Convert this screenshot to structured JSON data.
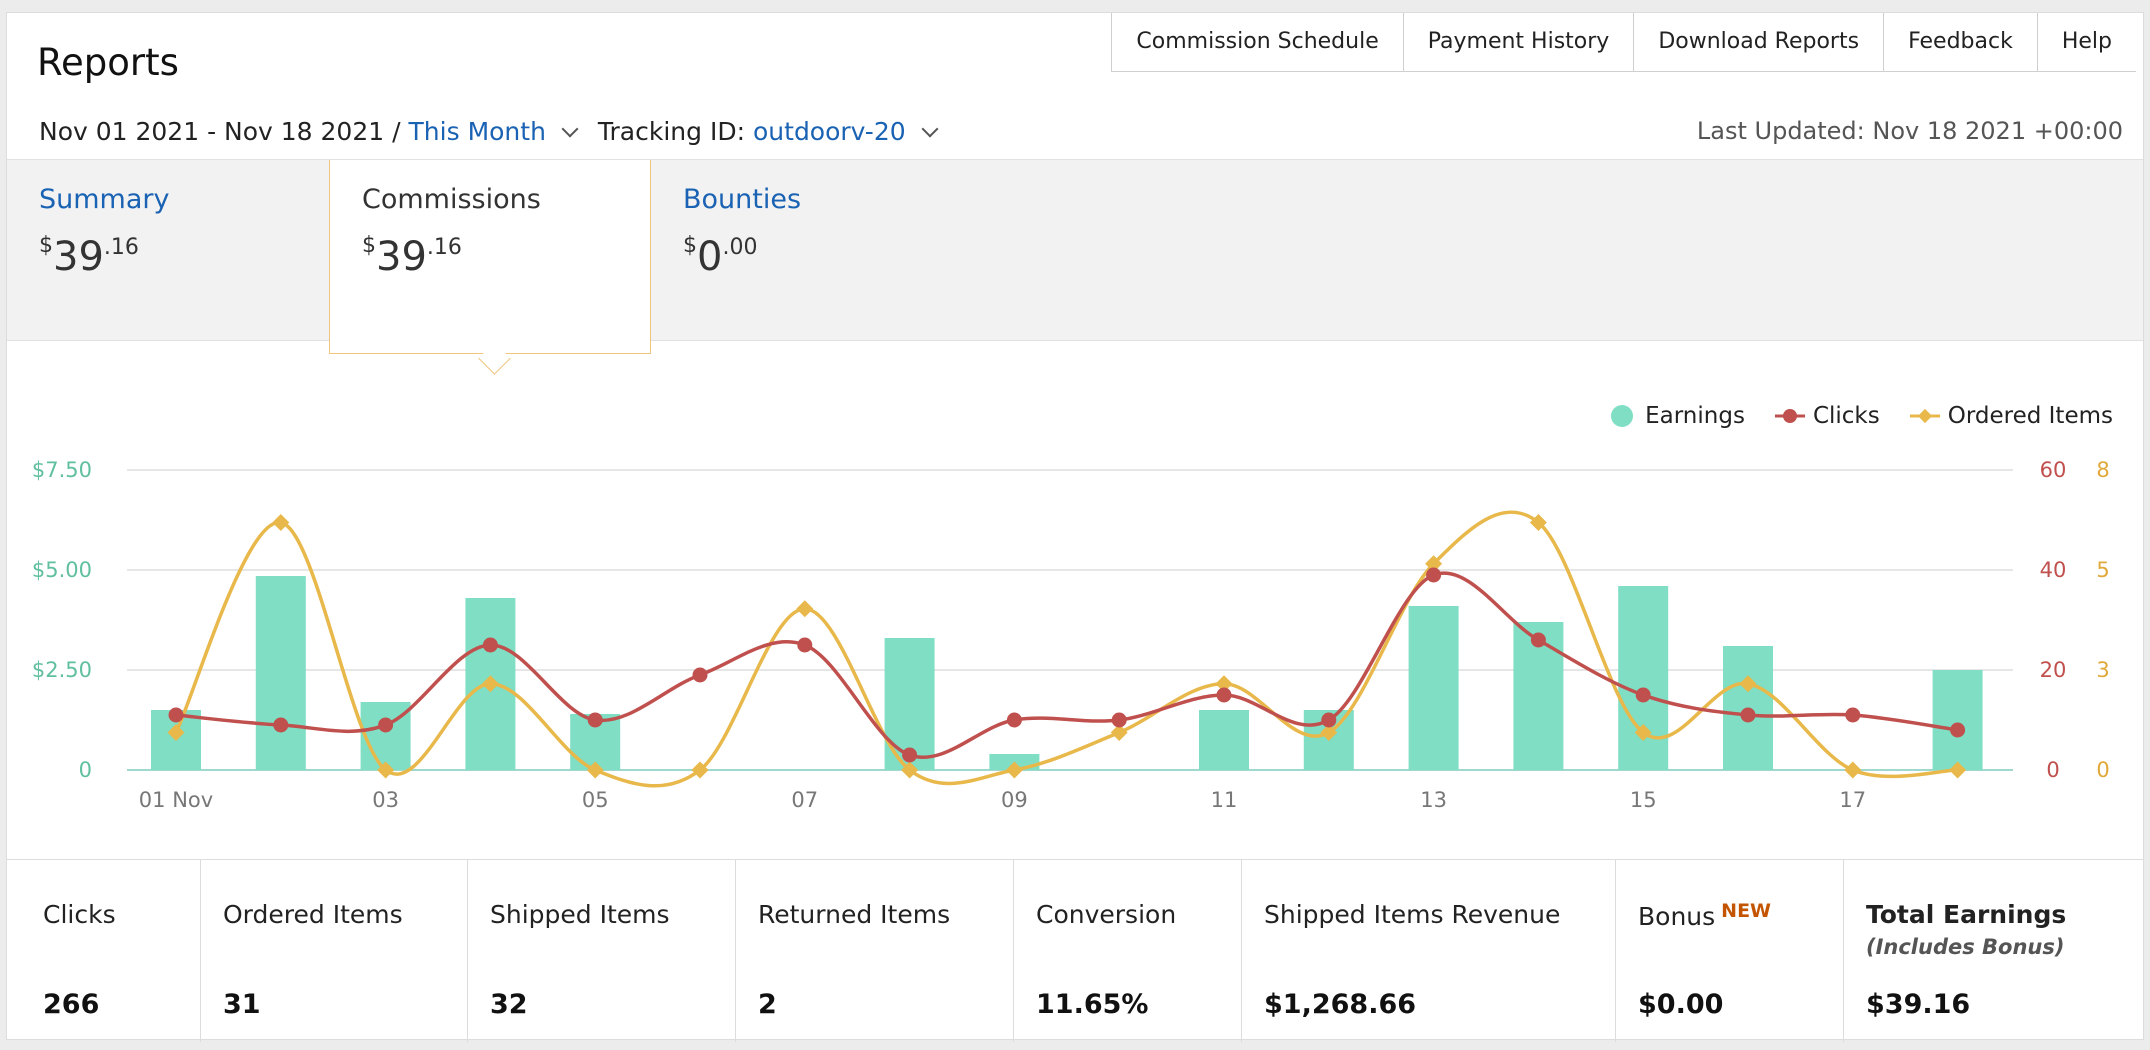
{
  "header": {
    "title": "Reports",
    "nav": [
      "Commission Schedule",
      "Payment History",
      "Download Reports",
      "Feedback",
      "Help"
    ]
  },
  "filters": {
    "date_range": "Nov 01 2021 - Nov 18 2021 /",
    "period": "This Month",
    "tracking_label": "Tracking ID:",
    "tracking_id": "outdoorv-20",
    "last_updated": "Last Updated: Nov 18 2021 +00:00"
  },
  "tabs": [
    {
      "label": "Summary",
      "currency": "$",
      "dollars": "39",
      "cents": ".16",
      "active": false
    },
    {
      "label": "Commissions",
      "currency": "$",
      "dollars": "39",
      "cents": ".16",
      "active": true
    },
    {
      "label": "Bounties",
      "currency": "$",
      "dollars": "0",
      "cents": ".00",
      "active": false
    }
  ],
  "legend": {
    "earnings": "Earnings",
    "clicks": "Clicks",
    "ordered": "Ordered Items"
  },
  "colors": {
    "earnings": "#7fdec4",
    "clicks": "#c0504d",
    "ordered": "#e8b84a",
    "link": "#1a62b3",
    "active_border": "#f1c57e",
    "new_badge": "#c45500"
  },
  "chart_data": {
    "type": "bar",
    "x": [
      "01 Nov",
      "02",
      "03",
      "04",
      "05",
      "06",
      "07",
      "08",
      "09",
      "10",
      "11",
      "12",
      "13",
      "14",
      "15",
      "16",
      "17",
      "18"
    ],
    "x_tick_labels": [
      "01 Nov",
      "03",
      "05",
      "07",
      "09",
      "11",
      "13",
      "15",
      "17"
    ],
    "series": [
      {
        "name": "Earnings",
        "axis": "left",
        "type": "bar",
        "values": [
          1.5,
          4.85,
          1.7,
          4.3,
          1.4,
          0,
          0,
          3.3,
          0.4,
          0,
          1.5,
          1.5,
          4.1,
          3.7,
          4.6,
          3.1,
          0,
          2.5
        ]
      },
      {
        "name": "Clicks",
        "axis": "right1",
        "type": "line",
        "values": [
          11,
          9,
          9,
          25,
          10,
          19,
          25,
          3,
          10,
          10,
          15,
          10,
          39,
          26,
          15,
          11,
          11,
          8
        ]
      },
      {
        "name": "Ordered Items",
        "axis": "right2",
        "type": "line",
        "values": [
          1,
          6.6,
          0,
          2.3,
          0,
          0,
          4.3,
          0,
          0,
          1,
          2.3,
          1,
          5.5,
          6.6,
          1,
          2.3,
          0,
          0
        ]
      }
    ],
    "y_left": {
      "ticks": [
        "0",
        "$2.50",
        "$5.00",
        "$7.50"
      ],
      "range": [
        0,
        7.5
      ]
    },
    "y_right1": {
      "ticks": [
        "0",
        "20",
        "40",
        "60"
      ],
      "range": [
        0,
        60
      ]
    },
    "y_right2": {
      "ticks": [
        "0",
        "3",
        "5",
        "8"
      ],
      "range": [
        0,
        8
      ]
    },
    "grid": true,
    "legend_position": "top-right"
  },
  "metrics": [
    {
      "label": "Clicks",
      "value": "266"
    },
    {
      "label": "Ordered Items",
      "value": "31"
    },
    {
      "label": "Shipped Items",
      "value": "32"
    },
    {
      "label": "Returned Items",
      "value": "2"
    },
    {
      "label": "Conversion",
      "value": "11.65%"
    },
    {
      "label": "Shipped Items Revenue",
      "value": "$1,268.66"
    },
    {
      "label": "Bonus",
      "badge": "NEW",
      "value": "$0.00"
    },
    {
      "label": "Total Earnings",
      "sub": "(Includes Bonus)",
      "value": "$39.16"
    }
  ]
}
